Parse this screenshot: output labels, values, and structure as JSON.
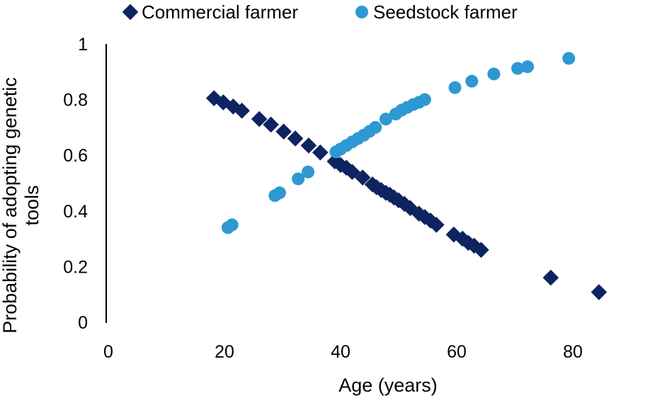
{
  "chart_data": {
    "type": "scatter",
    "xlabel": "Age (years)",
    "ylabel_lines": [
      "Probability of adopting genetic",
      "tools"
    ],
    "xlim": [
      0,
      95
    ],
    "ylim": [
      0,
      1
    ],
    "x_ticks": [
      "0",
      "20",
      "40",
      "60",
      "80"
    ],
    "y_ticks": [
      "0",
      "0.2",
      "0.4",
      "0.6",
      "0.8",
      "1"
    ],
    "grid": false,
    "legend_position": "top",
    "series": [
      {
        "name": "Commercial farmer",
        "marker": "diamond",
        "color": "#0d2460",
        "points": [
          [
            18.2,
            0.805
          ],
          [
            19.8,
            0.79
          ],
          [
            21.5,
            0.775
          ],
          [
            23.0,
            0.76
          ],
          [
            26.0,
            0.73
          ],
          [
            28.0,
            0.71
          ],
          [
            30.2,
            0.685
          ],
          [
            32.2,
            0.66
          ],
          [
            34.5,
            0.635
          ],
          [
            36.5,
            0.61
          ],
          [
            39.0,
            0.578
          ],
          [
            40.0,
            0.565
          ],
          [
            41.0,
            0.555
          ],
          [
            42.0,
            0.54
          ],
          [
            43.8,
            0.52
          ],
          [
            45.5,
            0.495
          ],
          [
            46.2,
            0.485
          ],
          [
            47.0,
            0.475
          ],
          [
            47.8,
            0.465
          ],
          [
            48.5,
            0.458
          ],
          [
            49.2,
            0.448
          ],
          [
            50.0,
            0.438
          ],
          [
            51.0,
            0.425
          ],
          [
            52.0,
            0.41
          ],
          [
            53.5,
            0.39
          ],
          [
            54.5,
            0.378
          ],
          [
            55.5,
            0.365
          ],
          [
            56.5,
            0.35
          ],
          [
            59.5,
            0.315
          ],
          [
            61.0,
            0.3
          ],
          [
            62.0,
            0.285
          ],
          [
            63.0,
            0.275
          ],
          [
            64.2,
            0.26
          ],
          [
            76.2,
            0.16
          ],
          [
            84.5,
            0.108
          ]
        ]
      },
      {
        "name": "Seedstock farmer",
        "marker": "circle",
        "color": "#2e98d2",
        "points": [
          [
            20.6,
            0.34
          ],
          [
            21.3,
            0.35
          ],
          [
            28.7,
            0.455
          ],
          [
            29.5,
            0.465
          ],
          [
            32.7,
            0.515
          ],
          [
            34.4,
            0.54
          ],
          [
            39.2,
            0.612
          ],
          [
            40.0,
            0.622
          ],
          [
            41.0,
            0.635
          ],
          [
            42.0,
            0.648
          ],
          [
            43.0,
            0.66
          ],
          [
            44.0,
            0.672
          ],
          [
            45.0,
            0.686
          ],
          [
            46.0,
            0.7
          ],
          [
            47.8,
            0.73
          ],
          [
            49.5,
            0.748
          ],
          [
            50.5,
            0.762
          ],
          [
            51.5,
            0.772
          ],
          [
            52.5,
            0.782
          ],
          [
            53.5,
            0.79
          ],
          [
            54.5,
            0.8
          ],
          [
            59.7,
            0.843
          ],
          [
            62.6,
            0.866
          ],
          [
            66.4,
            0.892
          ],
          [
            70.5,
            0.912
          ],
          [
            72.2,
            0.918
          ],
          [
            79.3,
            0.948
          ]
        ]
      }
    ]
  }
}
